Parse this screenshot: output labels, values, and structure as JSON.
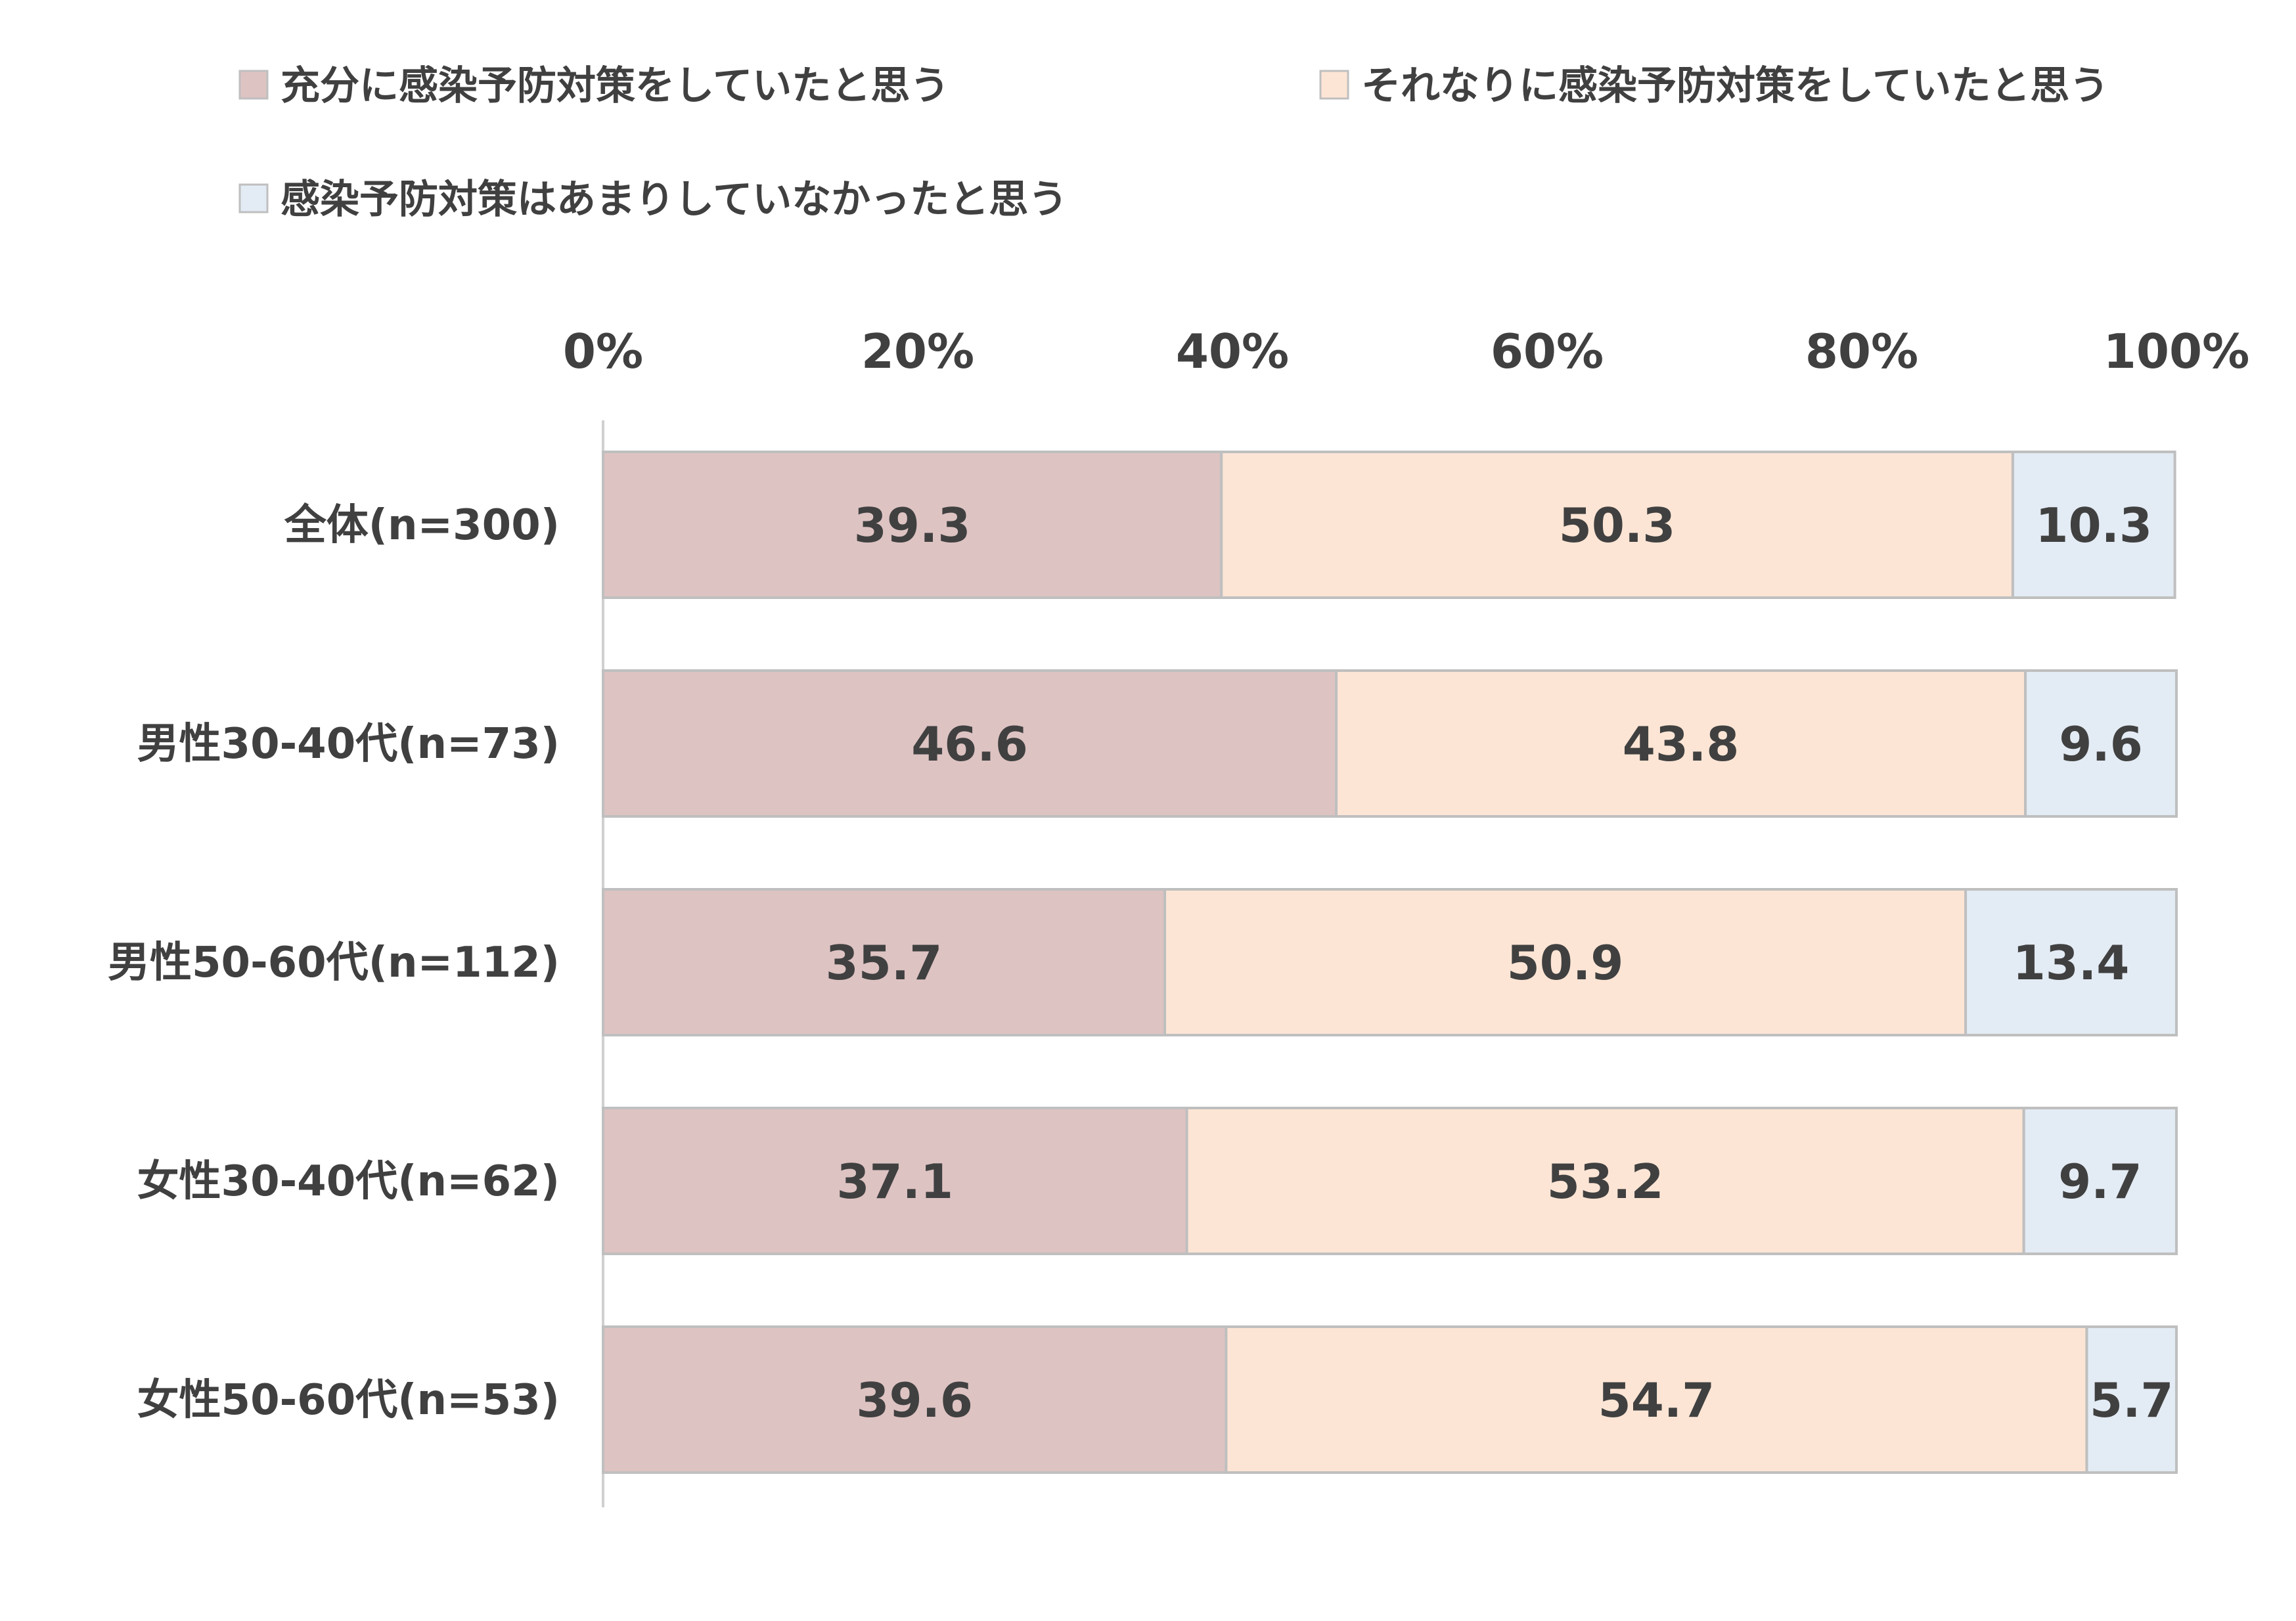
{
  "chart_data": {
    "type": "bar",
    "orientation": "horizontal",
    "stacked": true,
    "percent_stacked": true,
    "categories": [
      "全体(n=300)",
      "男性30-40代(n=73)",
      "男性50-60代(n=112)",
      "女性30-40代(n=62)",
      "女性50-60代(n=53)"
    ],
    "series": [
      {
        "name": "充分に感染予防対策をしていたと思う",
        "color": "#dec3c3",
        "values": [
          39.3,
          46.6,
          35.7,
          37.1,
          39.6
        ],
        "labels": [
          "39.3",
          "46.6",
          "35.7",
          "37.1",
          "39.6"
        ]
      },
      {
        "name": "それなりに感染予防対策をしていたと思う",
        "color": "#fde5d5",
        "values": [
          50.3,
          43.8,
          50.9,
          53.2,
          54.7
        ],
        "labels": [
          "50.3",
          "43.8",
          "50.9",
          "53.2",
          "54.7"
        ]
      },
      {
        "name": "感染予防対策はあまりしていなかったと思う",
        "color": "#e3ebf4",
        "values": [
          10.3,
          9.6,
          13.4,
          9.7,
          5.7
        ],
        "labels": [
          "10.3",
          "9.6",
          "13.4",
          "9.7",
          "5.7"
        ]
      }
    ],
    "xlim": [
      0,
      100
    ],
    "xticks": [
      "0%",
      "20%",
      "40%",
      "60%",
      "80%",
      "100%"
    ],
    "x_axis_position": "top",
    "legend_position": "top",
    "grid": false,
    "title": "",
    "xlabel": "",
    "ylabel": ""
  }
}
